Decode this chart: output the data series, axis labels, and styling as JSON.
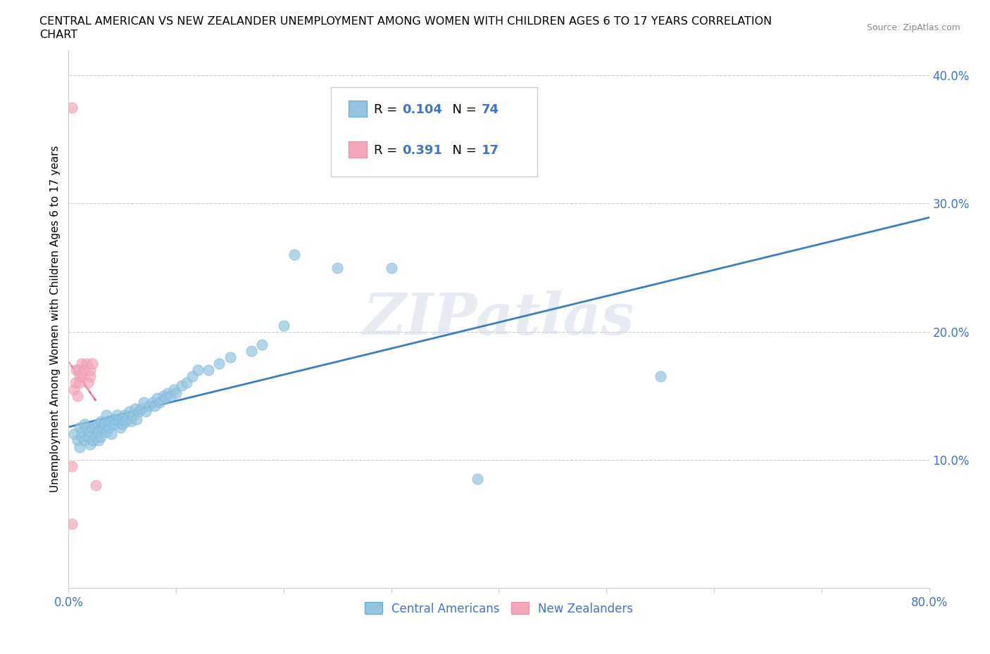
{
  "title_line1": "CENTRAL AMERICAN VS NEW ZEALANDER UNEMPLOYMENT AMONG WOMEN WITH CHILDREN AGES 6 TO 17 YEARS CORRELATION",
  "title_line2": "CHART",
  "source": "Source: ZipAtlas.com",
  "ylabel": "Unemployment Among Women with Children Ages 6 to 17 years",
  "xlim": [
    0.0,
    0.8
  ],
  "ylim": [
    0.0,
    0.42
  ],
  "xticks": [
    0.0,
    0.1,
    0.2,
    0.3,
    0.4,
    0.5,
    0.6,
    0.7,
    0.8
  ],
  "xticklabels": [
    "0.0%",
    "",
    "",
    "",
    "",
    "",
    "",
    "",
    "80.0%"
  ],
  "yticks": [
    0.1,
    0.2,
    0.3,
    0.4
  ],
  "yticklabels": [
    "10.0%",
    "20.0%",
    "30.0%",
    "40.0%"
  ],
  "watermark": "ZIPatlas",
  "blue_color": "#93c4e0",
  "pink_color": "#f4a7bb",
  "trend_blue": "#3a7ebf",
  "trend_pink": "#e05080",
  "trend_pink_dash": "#e8a0b8",
  "R_blue": 0.104,
  "N_blue": 74,
  "R_pink": 0.391,
  "N_pink": 17,
  "blue_scatter_x": [
    0.005,
    0.008,
    0.01,
    0.01,
    0.012,
    0.013,
    0.015,
    0.015,
    0.017,
    0.018,
    0.02,
    0.02,
    0.022,
    0.023,
    0.025,
    0.025,
    0.027,
    0.028,
    0.028,
    0.03,
    0.03,
    0.032,
    0.033,
    0.035,
    0.035,
    0.037,
    0.038,
    0.04,
    0.04,
    0.042,
    0.043,
    0.045,
    0.047,
    0.048,
    0.05,
    0.05,
    0.052,
    0.053,
    0.055,
    0.057,
    0.058,
    0.06,
    0.062,
    0.063,
    0.065,
    0.068,
    0.07,
    0.072,
    0.075,
    0.078,
    0.08,
    0.082,
    0.085,
    0.088,
    0.09,
    0.092,
    0.095,
    0.098,
    0.1,
    0.105,
    0.11,
    0.115,
    0.12,
    0.13,
    0.14,
    0.15,
    0.17,
    0.18,
    0.2,
    0.21,
    0.25,
    0.3,
    0.38,
    0.55
  ],
  "blue_scatter_y": [
    0.12,
    0.115,
    0.125,
    0.11,
    0.118,
    0.122,
    0.128,
    0.115,
    0.125,
    0.118,
    0.122,
    0.112,
    0.125,
    0.115,
    0.118,
    0.125,
    0.128,
    0.122,
    0.115,
    0.13,
    0.118,
    0.125,
    0.128,
    0.135,
    0.122,
    0.13,
    0.125,
    0.13,
    0.12,
    0.132,
    0.128,
    0.135,
    0.13,
    0.125,
    0.132,
    0.128,
    0.135,
    0.13,
    0.132,
    0.138,
    0.13,
    0.135,
    0.14,
    0.132,
    0.138,
    0.14,
    0.145,
    0.138,
    0.142,
    0.145,
    0.142,
    0.148,
    0.145,
    0.15,
    0.148,
    0.152,
    0.15,
    0.155,
    0.152,
    0.158,
    0.16,
    0.165,
    0.17,
    0.17,
    0.175,
    0.18,
    0.185,
    0.19,
    0.205,
    0.26,
    0.25,
    0.25,
    0.085,
    0.165
  ],
  "pink_scatter_x": [
    0.003,
    0.005,
    0.006,
    0.007,
    0.008,
    0.009,
    0.01,
    0.01,
    0.012,
    0.013,
    0.015,
    0.017,
    0.018,
    0.02,
    0.02,
    0.022,
    0.025
  ],
  "pink_scatter_y": [
    0.095,
    0.155,
    0.16,
    0.17,
    0.15,
    0.17,
    0.165,
    0.16,
    0.175,
    0.165,
    0.17,
    0.175,
    0.16,
    0.165,
    0.17,
    0.175,
    0.08
  ],
  "pink_outlier_x": [
    0.003
  ],
  "pink_outlier_y": [
    0.375
  ],
  "pink_bottom_x": [
    0.003
  ],
  "pink_bottom_y": [
    0.05
  ]
}
